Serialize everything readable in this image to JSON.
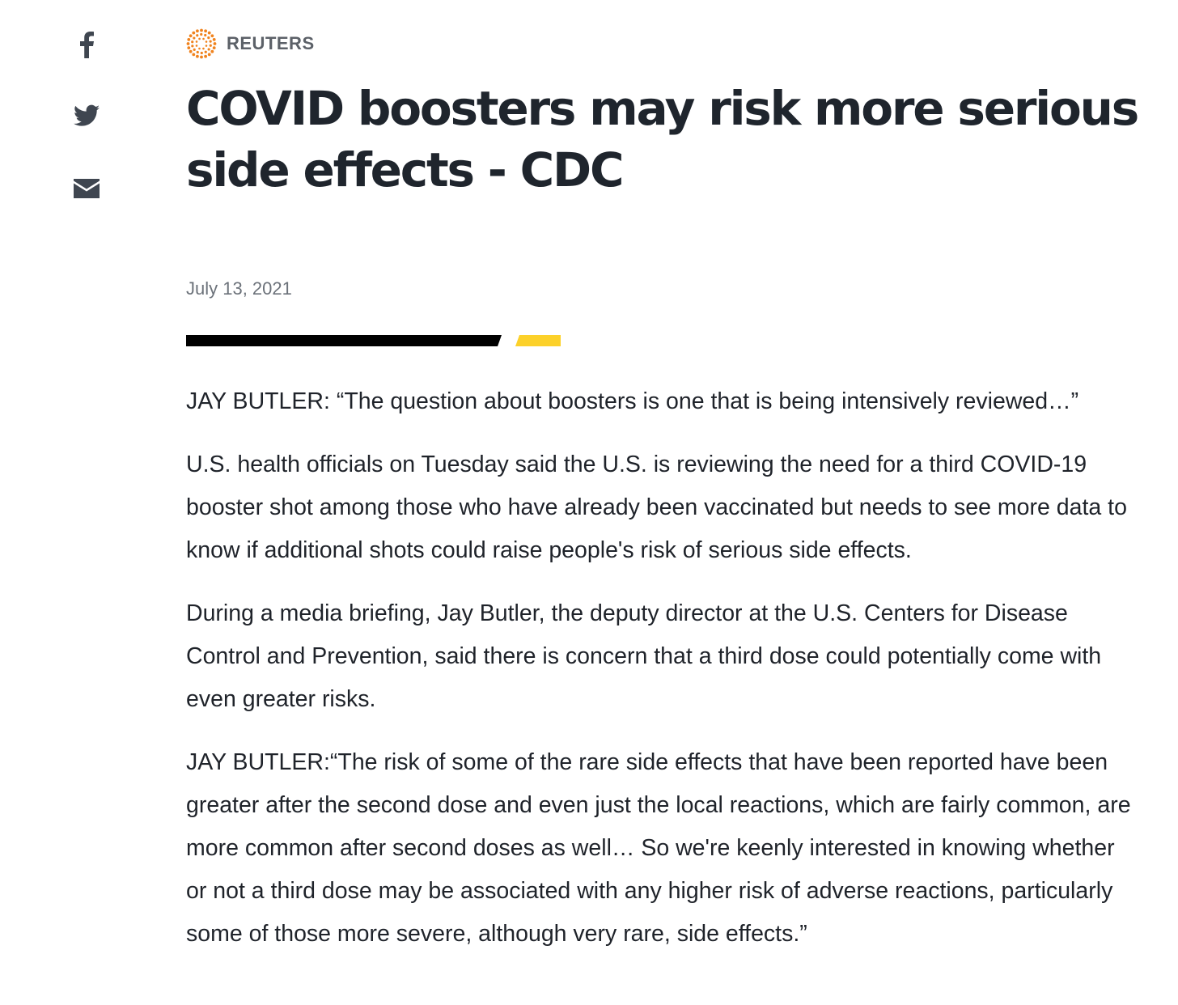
{
  "share": {
    "items": [
      {
        "icon": "facebook-icon",
        "label": "f"
      },
      {
        "icon": "twitter-icon"
      },
      {
        "icon": "email-icon"
      }
    ],
    "color": "#3f4650"
  },
  "brand": {
    "name": "REUTERS",
    "logo_icon": "reuters-dot-logo-icon",
    "logo_color": "#f0831e"
  },
  "article": {
    "headline": "COVID boosters may risk more serious side effects - CDC",
    "date": "July 13, 2021",
    "divider_colors": [
      "#000000",
      "#fcd12a"
    ],
    "paragraphs": [
      "JAY BUTLER: “The question about boosters is one that is being intensively reviewed…”",
      "U.S. health officials on Tuesday said the U.S. is reviewing the need for a third COVID-19 booster shot among those who have already been vaccinated but needs to see more data to know if additional shots could raise people's risk of serious side effects.",
      "During a media briefing, Jay Butler, the deputy director at the U.S. Centers for Disease Control and Prevention, said there is concern that a third dose could potentially come with even greater risks.",
      "JAY BUTLER:“The risk of some of the rare side effects that have been reported have been greater after the second dose and even just the local reactions, which are fairly common, are more common after second doses as well… So we're keenly interested in knowing whether or not a third dose may be associated with any higher risk of adverse reactions, particularly some of those more severe, although very rare, side effects.”"
    ]
  }
}
